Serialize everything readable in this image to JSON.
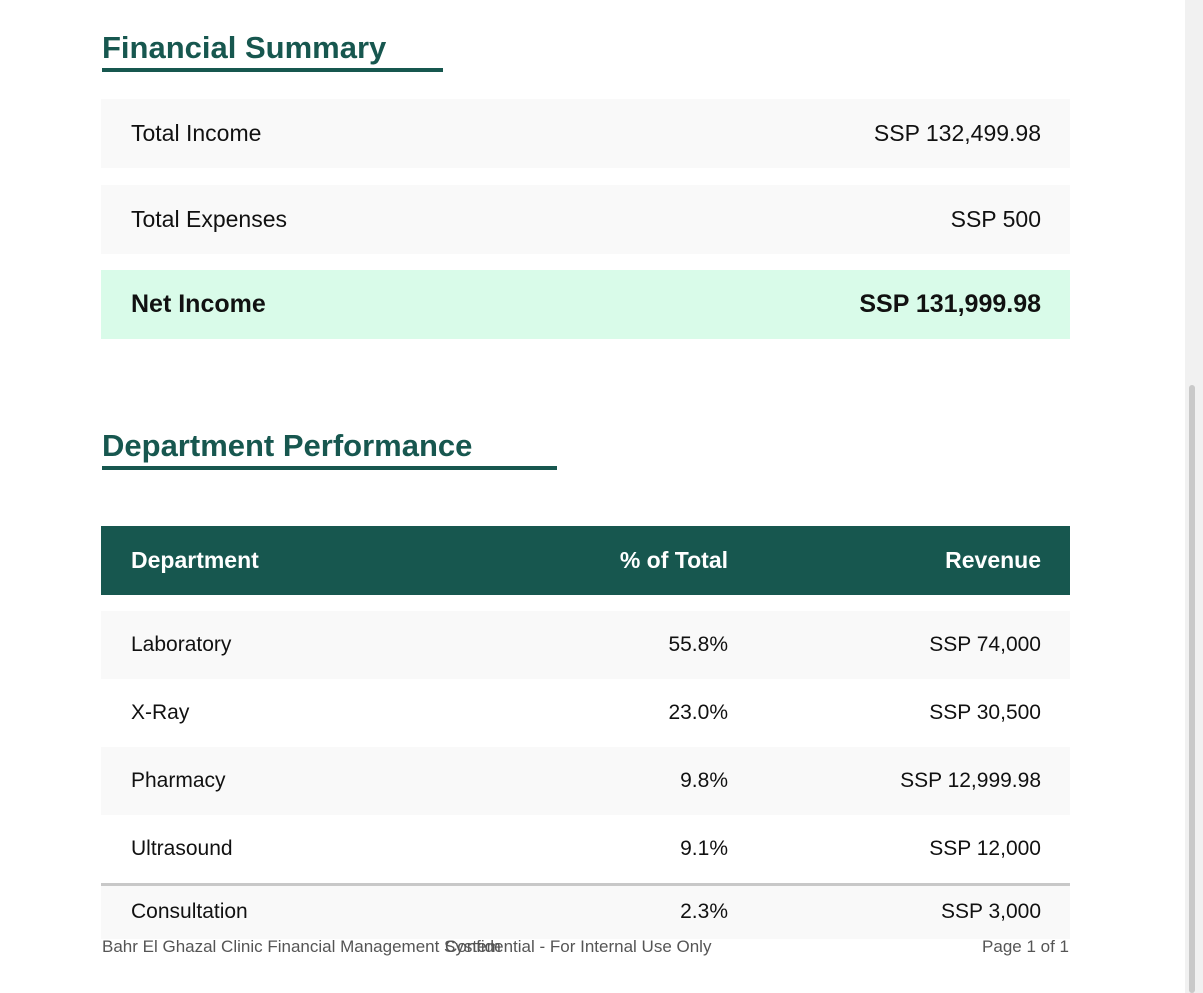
{
  "financial_summary": {
    "title": "Financial Summary",
    "rows": [
      {
        "label": "Total Income",
        "value": "SSP 132,499.98"
      },
      {
        "label": "Total Expenses",
        "value": "SSP 500"
      },
      {
        "label": "Net Income",
        "value": "SSP 131,999.98"
      }
    ]
  },
  "department_performance": {
    "title": "Department Performance",
    "headers": {
      "department": "Department",
      "percent": "% of Total",
      "revenue": "Revenue"
    },
    "rows": [
      {
        "department": "Laboratory",
        "percent": "55.8%",
        "revenue": "SSP 74,000"
      },
      {
        "department": "X-Ray",
        "percent": "23.0%",
        "revenue": "SSP 30,500"
      },
      {
        "department": "Pharmacy",
        "percent": "9.8%",
        "revenue": "SSP 12,999.98"
      },
      {
        "department": "Ultrasound",
        "percent": "9.1%",
        "revenue": "SSP 12,000"
      },
      {
        "department": "Consultation",
        "percent": "2.3%",
        "revenue": "SSP 3,000"
      }
    ]
  },
  "footer": {
    "left": "Bahr El Ghazal Clinic Financial Management System",
    "center": "Confidential - For Internal Use Only",
    "right": "Page 1 of 1"
  },
  "colors": {
    "accent": "#17574f",
    "net_income_bg": "#d9fbe9",
    "row_bg": "#f9f9f9"
  }
}
